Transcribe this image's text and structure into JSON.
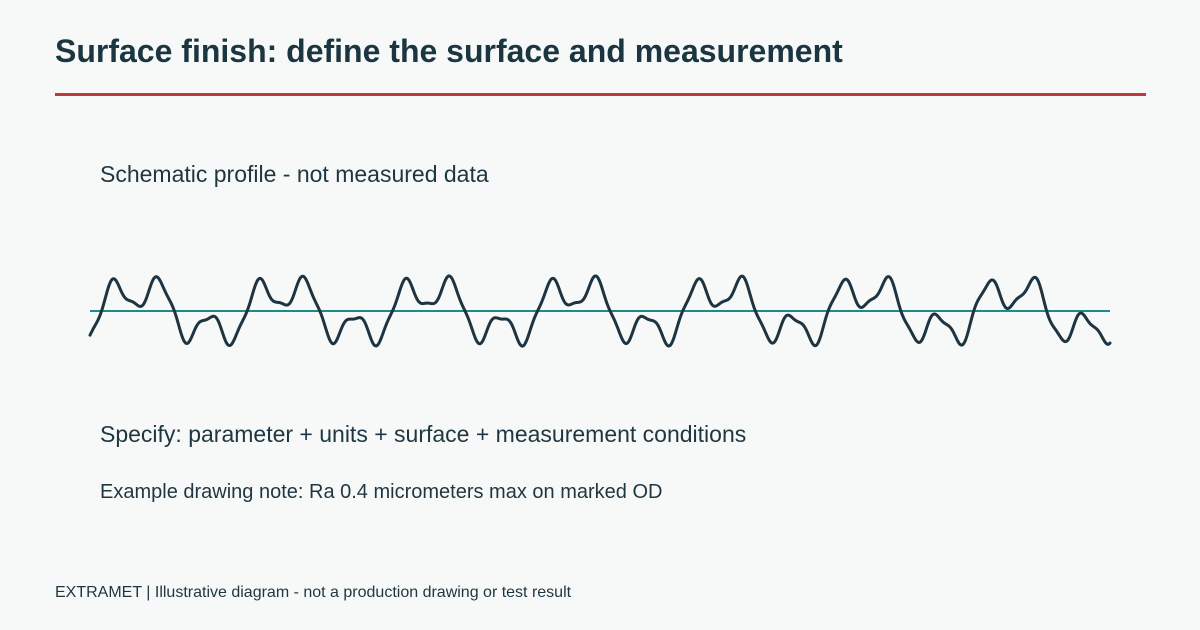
{
  "title": "Surface finish: define the surface and measurement",
  "caption": "Schematic profile - not measured data",
  "spec_line": "Specify: parameter + units + surface + measurement conditions",
  "example_note": "Example drawing note: Ra 0.4 micrometers max on marked OD",
  "footer": "EXTRAMET | Illustrative diagram - not a production drawing or test result",
  "colors": {
    "title": "#1b3640",
    "accent_rule": "#c0393b",
    "profile_line": "#1e3440",
    "mean_line": "#1f8a8a",
    "background": "#f7f9f9"
  }
}
